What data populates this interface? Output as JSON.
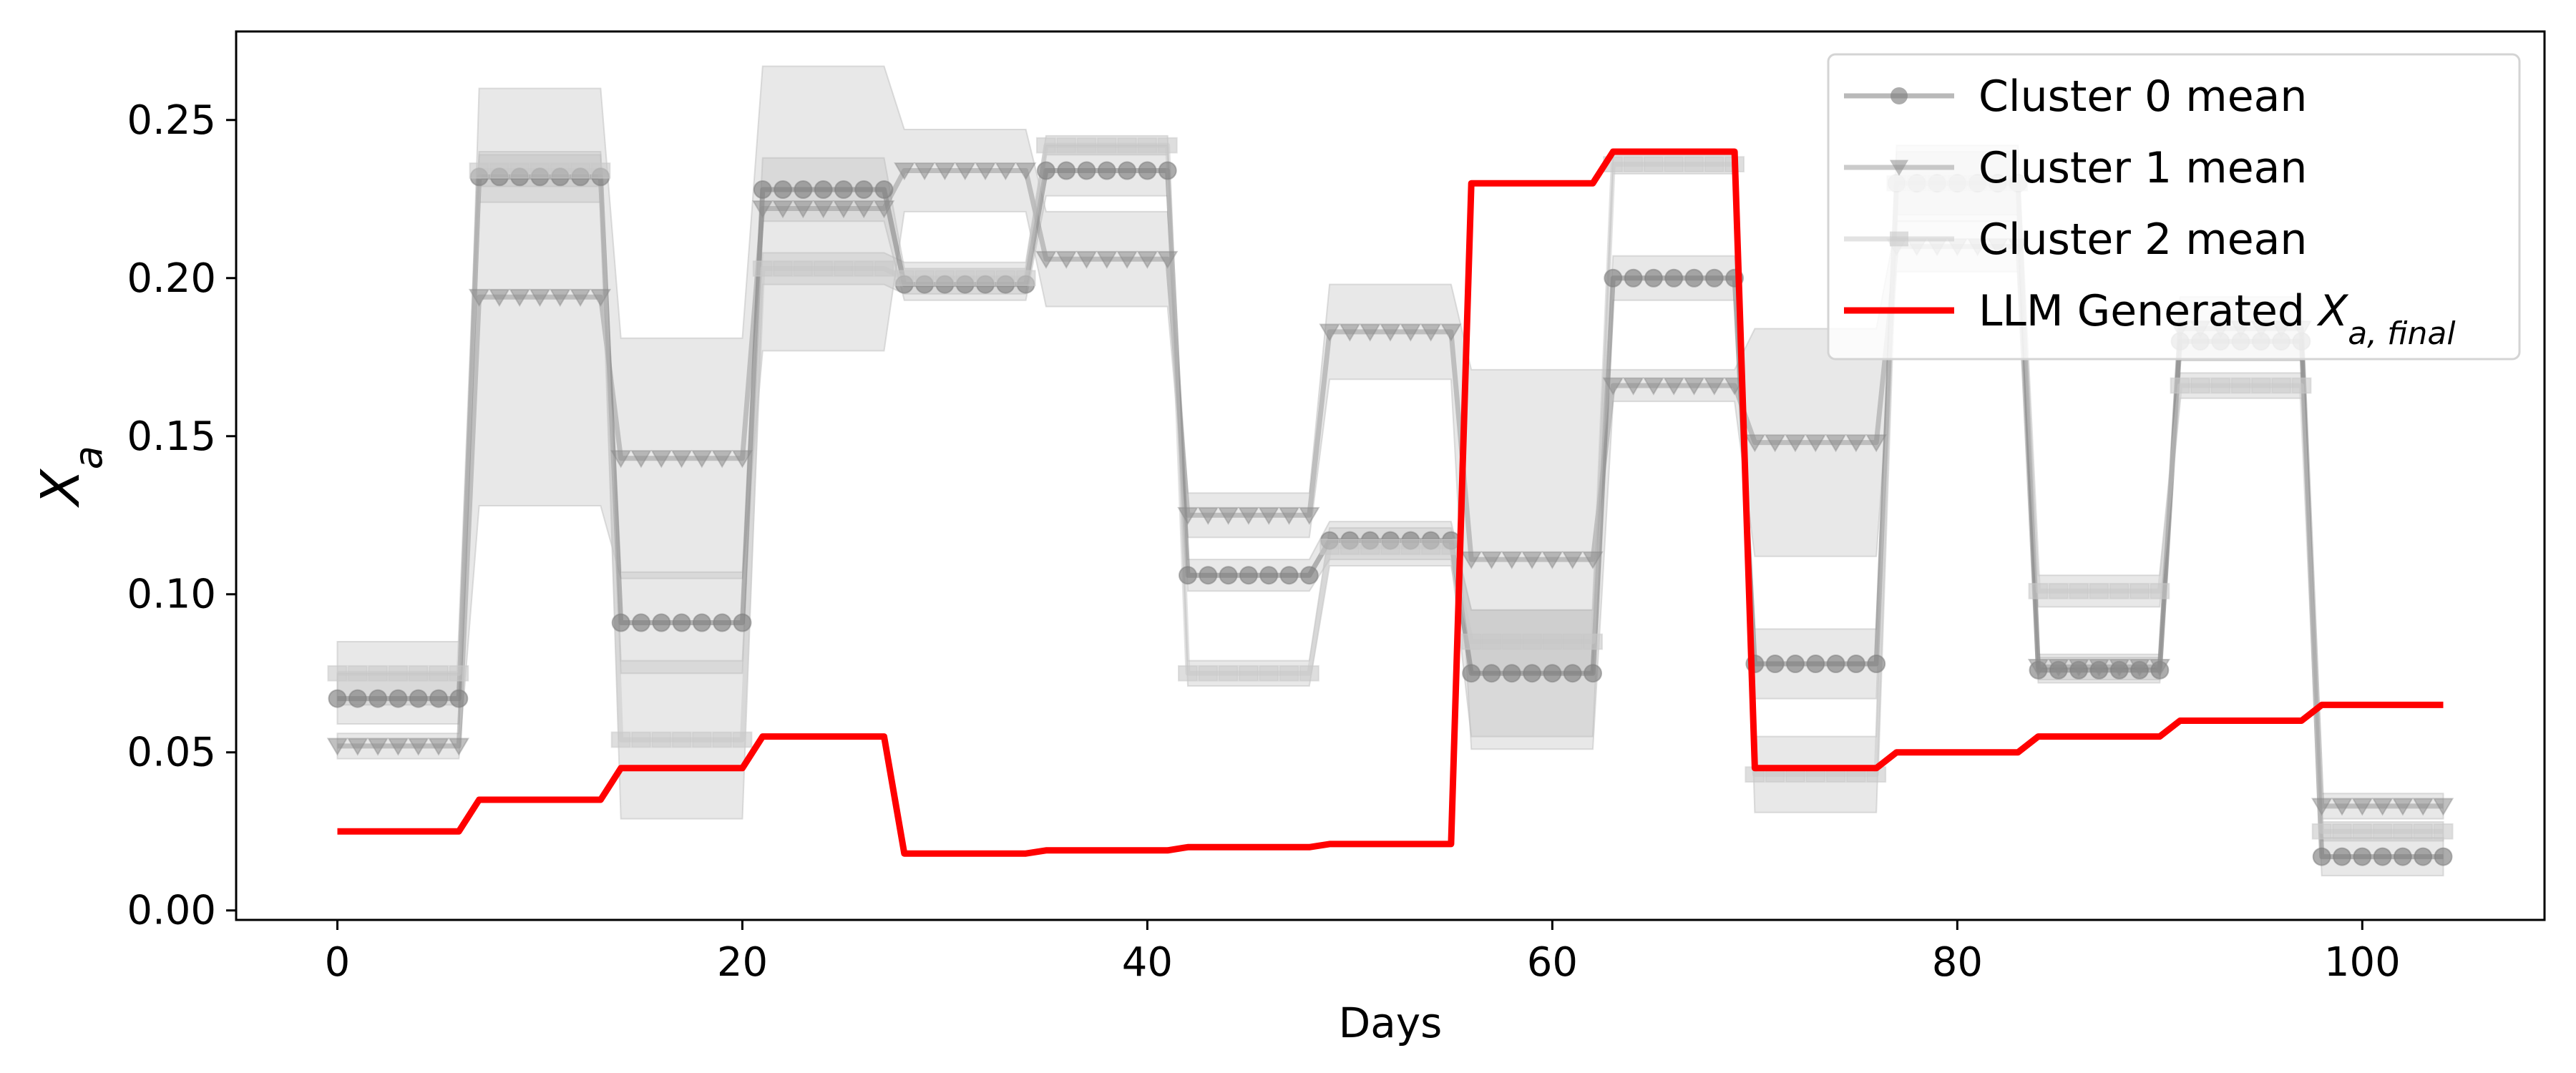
{
  "chart_data": {
    "type": "line",
    "xlabel": "Days",
    "ylabel": "X_a",
    "xlim": [
      -5,
      109
    ],
    "ylim": [
      -0.003,
      0.278
    ],
    "xticks": [
      0,
      20,
      40,
      60,
      80,
      100
    ],
    "yticks": [
      0.0,
      0.05,
      0.1,
      0.15,
      0.2,
      0.25
    ],
    "grid": false,
    "legend_placement": "top-right",
    "series": [
      {
        "name": "Cluster 0 mean",
        "marker": "circle",
        "color": "#808080",
        "alpha": 0.55,
        "segments": [
          {
            "start": 0,
            "end": 6,
            "mean": 0.067,
            "band": 0.008
          },
          {
            "start": 7,
            "end": 13,
            "mean": 0.232,
            "band": 0.008
          },
          {
            "start": 14,
            "end": 20,
            "mean": 0.091,
            "band": 0.016
          },
          {
            "start": 21,
            "end": 27,
            "mean": 0.228,
            "band": 0.01
          },
          {
            "start": 28,
            "end": 34,
            "mean": 0.198,
            "band": 0.005
          },
          {
            "start": 35,
            "end": 41,
            "mean": 0.234,
            "band": 0.008
          },
          {
            "start": 42,
            "end": 48,
            "mean": 0.106,
            "band": 0.005
          },
          {
            "start": 49,
            "end": 55,
            "mean": 0.117,
            "band": 0.006
          },
          {
            "start": 56,
            "end": 62,
            "mean": 0.075,
            "band": 0.02
          },
          {
            "start": 63,
            "end": 69,
            "mean": 0.2,
            "band": 0.007
          },
          {
            "start": 70,
            "end": 76,
            "mean": 0.078,
            "band": 0.011
          },
          {
            "start": 77,
            "end": 83,
            "mean": 0.23,
            "band": 0.012
          },
          {
            "start": 84,
            "end": 90,
            "mean": 0.076,
            "band": 0.004
          },
          {
            "start": 91,
            "end": 97,
            "mean": 0.18,
            "band": 0.006
          },
          {
            "start": 98,
            "end": 104,
            "mean": 0.017,
            "band": 0.006
          }
        ]
      },
      {
        "name": "Cluster 1 mean",
        "marker": "triangle-down",
        "color": "#8c8c8c",
        "alpha": 0.45,
        "segments": [
          {
            "start": 0,
            "end": 6,
            "mean": 0.052,
            "band": 0.004
          },
          {
            "start": 7,
            "end": 13,
            "mean": 0.194,
            "band": 0.066
          },
          {
            "start": 14,
            "end": 20,
            "mean": 0.143,
            "band": 0.038
          },
          {
            "start": 21,
            "end": 27,
            "mean": 0.222,
            "band": 0.045
          },
          {
            "start": 28,
            "end": 34,
            "mean": 0.234,
            "band": 0.013
          },
          {
            "start": 35,
            "end": 41,
            "mean": 0.206,
            "band": 0.015
          },
          {
            "start": 42,
            "end": 48,
            "mean": 0.125,
            "band": 0.007
          },
          {
            "start": 49,
            "end": 55,
            "mean": 0.183,
            "band": 0.015
          },
          {
            "start": 56,
            "end": 62,
            "mean": 0.111,
            "band": 0.06
          },
          {
            "start": 63,
            "end": 69,
            "mean": 0.166,
            "band": 0.005
          },
          {
            "start": 70,
            "end": 76,
            "mean": 0.148,
            "band": 0.036
          },
          {
            "start": 77,
            "end": 83,
            "mean": 0.21,
            "band": 0.008
          },
          {
            "start": 84,
            "end": 90,
            "mean": 0.077,
            "band": 0.004
          },
          {
            "start": 91,
            "end": 97,
            "mean": 0.184,
            "band": 0.01
          },
          {
            "start": 98,
            "end": 104,
            "mean": 0.033,
            "band": 0.004
          }
        ]
      },
      {
        "name": "Cluster 2 mean",
        "marker": "square",
        "color": "#c8c8c8",
        "alpha": 0.5,
        "segments": [
          {
            "start": 0,
            "end": 6,
            "mean": 0.075,
            "band": 0.01
          },
          {
            "start": 7,
            "end": 13,
            "mean": 0.234,
            "band": 0.005
          },
          {
            "start": 14,
            "end": 20,
            "mean": 0.054,
            "band": 0.025
          },
          {
            "start": 21,
            "end": 27,
            "mean": 0.203,
            "band": 0.005
          },
          {
            "start": 28,
            "end": 34,
            "mean": 0.2,
            "band": 0.005
          },
          {
            "start": 35,
            "end": 41,
            "mean": 0.242,
            "band": 0.003
          },
          {
            "start": 42,
            "end": 48,
            "mean": 0.075,
            "band": 0.004
          },
          {
            "start": 49,
            "end": 55,
            "mean": 0.115,
            "band": 0.006
          },
          {
            "start": 56,
            "end": 62,
            "mean": 0.085,
            "band": 0.01
          },
          {
            "start": 63,
            "end": 69,
            "mean": 0.236,
            "band": 0.003
          },
          {
            "start": 70,
            "end": 76,
            "mean": 0.043,
            "band": 0.012
          },
          {
            "start": 77,
            "end": 83,
            "mean": 0.23,
            "band": 0.01
          },
          {
            "start": 84,
            "end": 90,
            "mean": 0.101,
            "band": 0.005
          },
          {
            "start": 91,
            "end": 97,
            "mean": 0.166,
            "band": 0.004
          },
          {
            "start": 98,
            "end": 104,
            "mean": 0.025,
            "band": 0.003
          }
        ]
      },
      {
        "name": "LLM Generated X_{a, final}",
        "color": "#ff0000",
        "points": [
          [
            0,
            0.025
          ],
          [
            6,
            0.025
          ],
          [
            7,
            0.035
          ],
          [
            13,
            0.035
          ],
          [
            14,
            0.045
          ],
          [
            20,
            0.045
          ],
          [
            21,
            0.055
          ],
          [
            27,
            0.055
          ],
          [
            28,
            0.018
          ],
          [
            34,
            0.018
          ],
          [
            35,
            0.019
          ],
          [
            41,
            0.019
          ],
          [
            42,
            0.02
          ],
          [
            48,
            0.02
          ],
          [
            49,
            0.021
          ],
          [
            55,
            0.021
          ],
          [
            56,
            0.23
          ],
          [
            62,
            0.23
          ],
          [
            63,
            0.24
          ],
          [
            69,
            0.24
          ],
          [
            70,
            0.045
          ],
          [
            76,
            0.045
          ],
          [
            77,
            0.05
          ],
          [
            83,
            0.05
          ],
          [
            84,
            0.055
          ],
          [
            90,
            0.055
          ],
          [
            91,
            0.06
          ],
          [
            97,
            0.06
          ],
          [
            98,
            0.065
          ],
          [
            104,
            0.065
          ]
        ]
      }
    ]
  },
  "legend": {
    "items": [
      {
        "label": "Cluster 0 mean",
        "prefix": "Cluster 0 mean",
        "sub": ""
      },
      {
        "label": "Cluster 1 mean",
        "prefix": "Cluster 1 mean",
        "sub": ""
      },
      {
        "label": "Cluster 2 mean",
        "prefix": "Cluster 2 mean",
        "sub": ""
      },
      {
        "label": "LLM Generated X_{a, final}",
        "prefix": "LLM Generated X",
        "sub": "a, final"
      }
    ]
  },
  "axes": {
    "xlabel": "Days",
    "ylabel_main": "X",
    "ylabel_sub": "a"
  }
}
